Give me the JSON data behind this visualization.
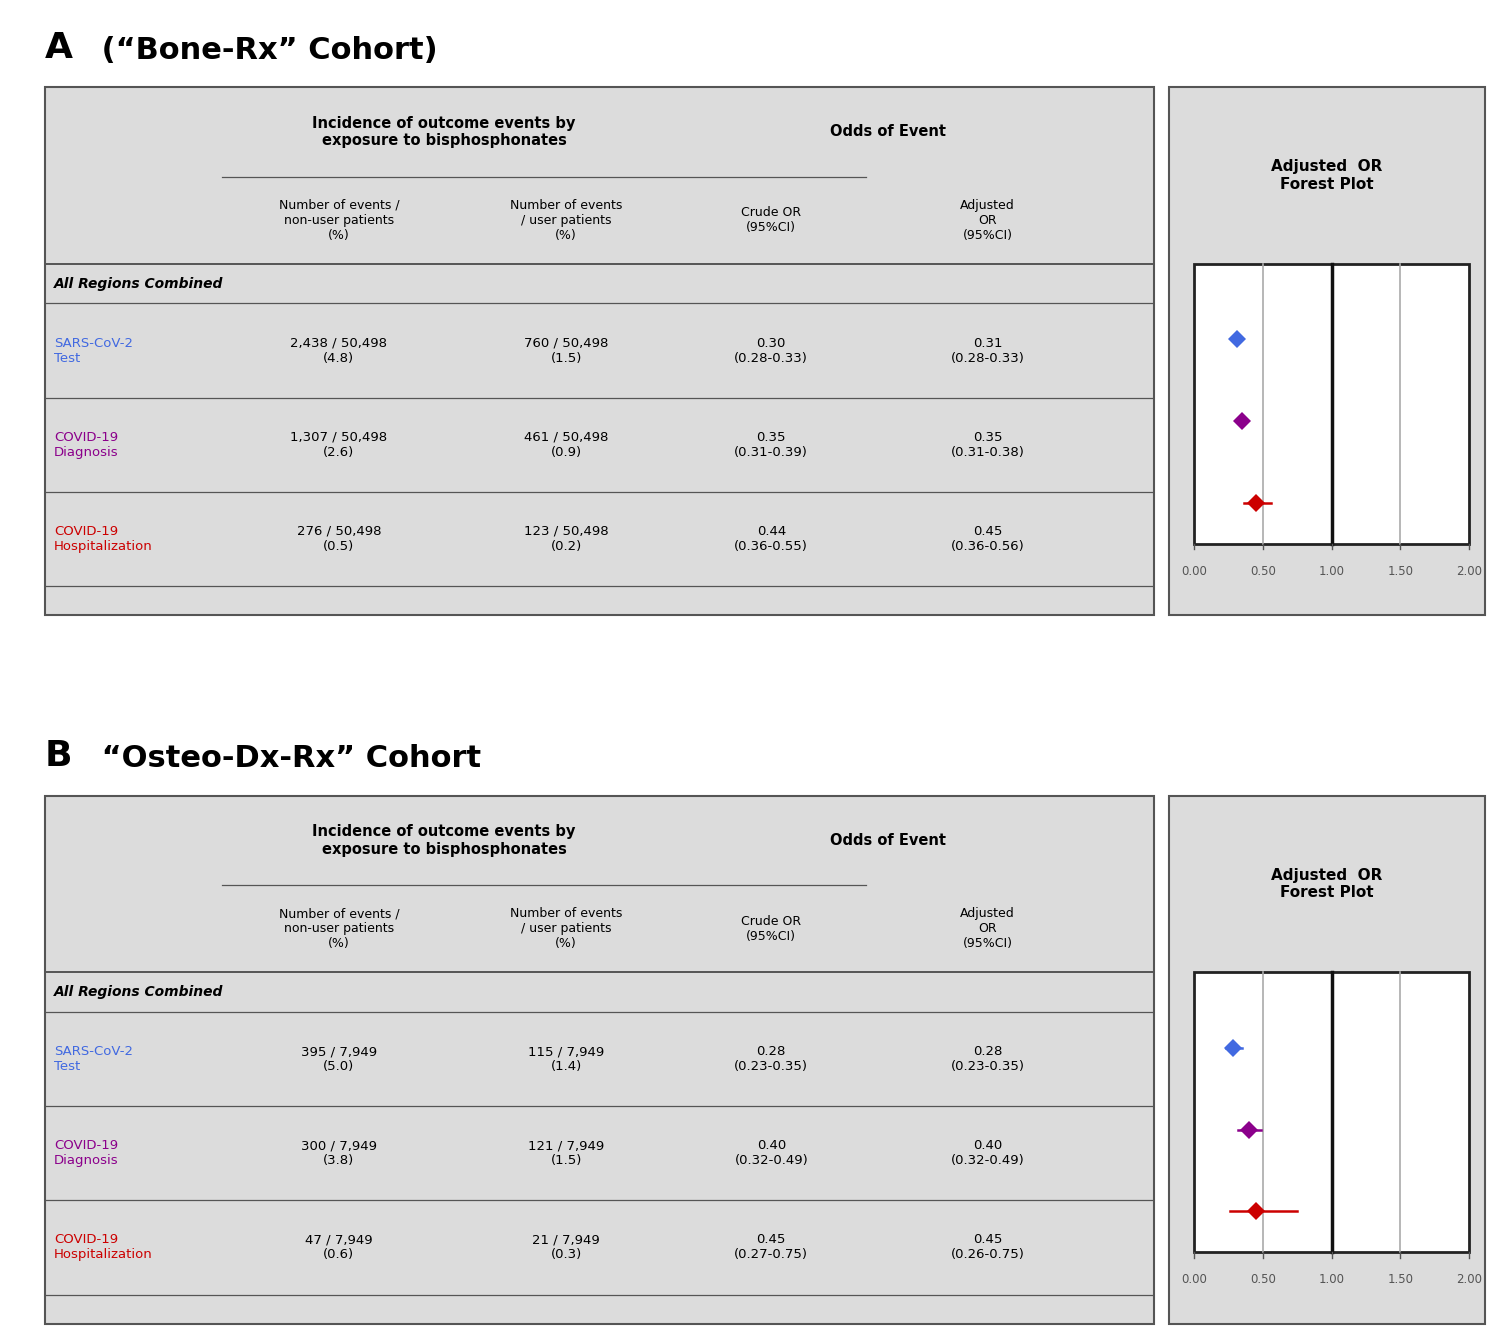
{
  "title_A": "A (“Bone-Rx” Cohort)",
  "title_B": "B “Osteo-Dx-Rx” Cohort",
  "col_headers": [
    "Number of events /\nnon-user patients\n(%)",
    "Number of events\n/ user patients\n(%)",
    "Crude OR\n(95%CI)",
    "Adjusted\nOR\n(95%CI)"
  ],
  "incidence_header": "Incidence of outcome events by\nexposure to bisphosphonates",
  "odds_header": "Odds of Event",
  "forest_header": "Adjusted  OR\nForest Plot",
  "all_regions_label": "All Regions Combined",
  "panel_A": {
    "rows": [
      {
        "label_line1": "SARS-CoV-2",
        "label_line2": "Test",
        "label_color": "#4169E1",
        "col1": "2,438 / 50,498\n(4.8)",
        "col2": "760 / 50,498\n(1.5)",
        "col3": "0.30\n(0.28-0.33)",
        "col4": "0.31\n(0.28-0.33)",
        "or": 0.31,
        "ci_low": 0.28,
        "ci_high": 0.33,
        "marker_color": "#4169E1",
        "marker_style": "D"
      },
      {
        "label_line1": "COVID-19",
        "label_line2": "Diagnosis",
        "label_color": "#8B008B",
        "col1": "1,307 / 50,498\n(2.6)",
        "col2": "461 / 50,498\n(0.9)",
        "col3": "0.35\n(0.31-0.39)",
        "col4": "0.35\n(0.31-0.38)",
        "or": 0.35,
        "ci_low": 0.31,
        "ci_high": 0.38,
        "marker_color": "#8B008B",
        "marker_style": "D"
      },
      {
        "label_line1": "COVID-19",
        "label_line2": "Hospitalization",
        "label_color": "#CC0000",
        "col1": "276 / 50,498\n(0.5)",
        "col2": "123 / 50,498\n(0.2)",
        "col3": "0.44\n(0.36-0.55)",
        "col4": "0.45\n(0.36-0.56)",
        "or": 0.45,
        "ci_low": 0.36,
        "ci_high": 0.56,
        "marker_color": "#CC0000",
        "marker_style": "D"
      }
    ]
  },
  "panel_B": {
    "rows": [
      {
        "label_line1": "SARS-CoV-2",
        "label_line2": "Test",
        "label_color": "#4169E1",
        "col1": "395 / 7,949\n(5.0)",
        "col2": "115 / 7,949\n(1.4)",
        "col3": "0.28\n(0.23-0.35)",
        "col4": "0.28\n(0.23-0.35)",
        "or": 0.28,
        "ci_low": 0.23,
        "ci_high": 0.35,
        "marker_color": "#4169E1",
        "marker_style": "D"
      },
      {
        "label_line1": "COVID-19",
        "label_line2": "Diagnosis",
        "label_color": "#8B008B",
        "col1": "300 / 7,949\n(3.8)",
        "col2": "121 / 7,949\n(1.5)",
        "col3": "0.40\n(0.32-0.49)",
        "col4": "0.40\n(0.32-0.49)",
        "or": 0.4,
        "ci_low": 0.32,
        "ci_high": 0.49,
        "marker_color": "#8B008B",
        "marker_style": "D"
      },
      {
        "label_line1": "COVID-19",
        "label_line2": "Hospitalization",
        "label_color": "#CC0000",
        "col1": "47 / 7,949\n(0.6)",
        "col2": "21 / 7,949\n(0.3)",
        "col3": "0.45\n(0.27-0.75)",
        "col4": "0.45\n(0.26-0.75)",
        "or": 0.45,
        "ci_low": 0.26,
        "ci_high": 0.75,
        "marker_color": "#CC0000",
        "marker_style": "D"
      }
    ]
  },
  "forest_xlim": [
    0.0,
    2.0
  ],
  "forest_xticks": [
    0.0,
    0.5,
    1.0,
    1.5,
    2.0
  ],
  "forest_xtick_labels": [
    "0.00",
    "0.50",
    "1.00",
    "1.50",
    "2.00"
  ],
  "bg_color": "#DCDCDC",
  "white": "#FFFFFF"
}
